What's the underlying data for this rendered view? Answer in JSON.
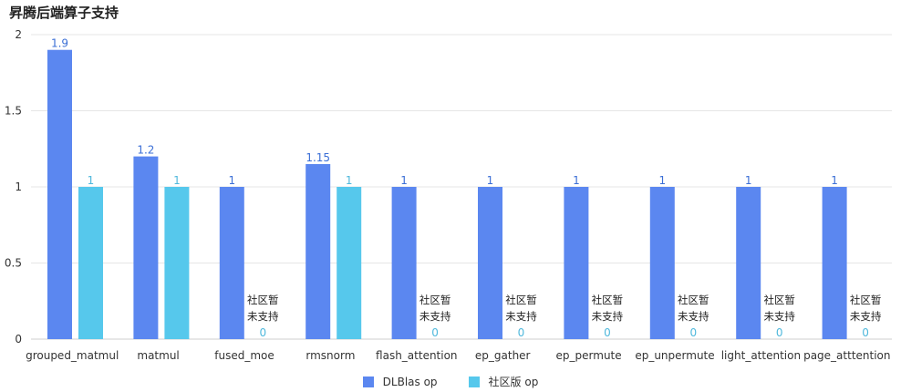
{
  "chart_data": {
    "type": "bar",
    "title": "昇腾后端算子支持",
    "categories": [
      "grouped_matmul",
      "matmul",
      "fused_moe",
      "rmsnorm",
      "flash_attention",
      "ep_gather",
      "ep_permute",
      "ep_unpermute",
      "light_attention",
      "page_atttention"
    ],
    "series": [
      {
        "name": "DLBlas op",
        "values": [
          1.9,
          1.2,
          1,
          1.15,
          1,
          1,
          1,
          1,
          1,
          1
        ],
        "color": "#5b87f0"
      },
      {
        "name": "社区版 op",
        "values": [
          1,
          1,
          0,
          1,
          0,
          0,
          0,
          0,
          0,
          0
        ],
        "color": "#56c8ec"
      }
    ],
    "annotations": [
      "",
      "",
      "社区暂未支持",
      "",
      "社区暂未支持",
      "社区暂未支持",
      "社区暂未支持",
      "社区暂未支持",
      "社区暂未支持",
      "社区暂未支持"
    ],
    "ylim": [
      0,
      2
    ],
    "yticks": [
      "0",
      "0.5",
      "1",
      "1.5",
      "2"
    ],
    "grid": true,
    "legend": "bottom-center"
  },
  "note_line1": "社区暂",
  "note_line2": "未支持"
}
